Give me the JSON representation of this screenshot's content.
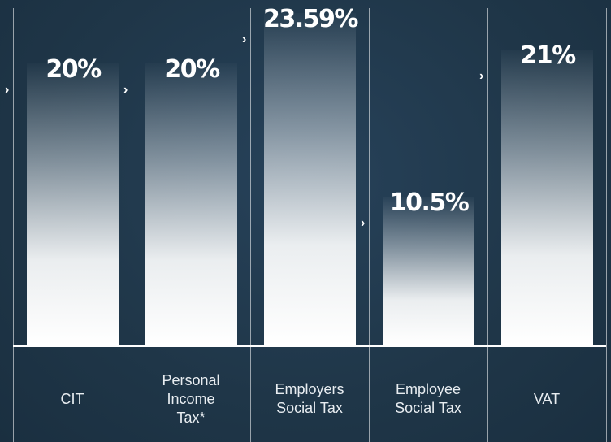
{
  "chart_data": {
    "type": "bar",
    "categories": [
      "CIT",
      "Personal Income Tax*",
      "Employers Social Tax",
      "Employee Social Tax",
      "VAT"
    ],
    "values": [
      20,
      20,
      23.59,
      10.5,
      21
    ],
    "value_labels": [
      "20%",
      "20%",
      "23.59%",
      "10.5%",
      "21%"
    ],
    "color": "#ffffff"
  }
}
